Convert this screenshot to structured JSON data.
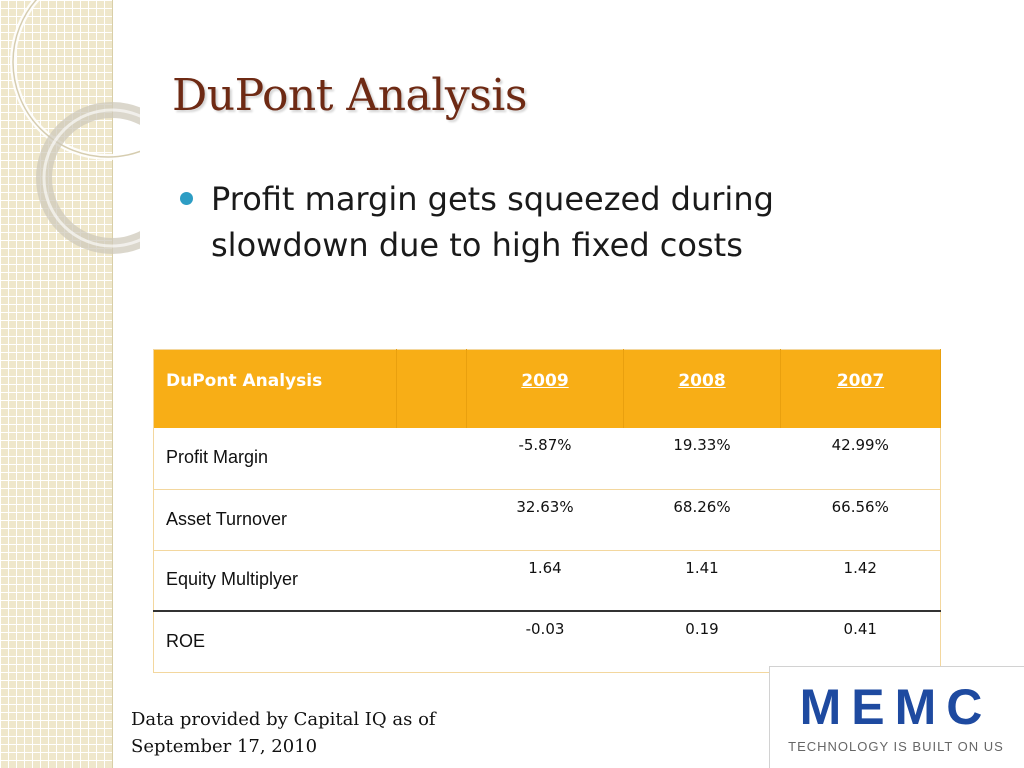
{
  "slide": {
    "title": "DuPont Analysis",
    "bullet": "Profit margin gets squeezed during slowdown due to high fixed costs"
  },
  "table": {
    "header": {
      "label": "DuPont Analysis",
      "years": [
        "2009",
        "2008",
        "2007"
      ]
    },
    "rows": [
      {
        "label": "Profit Margin",
        "values": [
          "-5.87%",
          "19.33%",
          "42.99%"
        ]
      },
      {
        "label": "Asset Turnover",
        "values": [
          "32.63%",
          "68.26%",
          "66.56%"
        ]
      },
      {
        "label": "Equity Multiplyer",
        "values": [
          "1.64",
          "1.41",
          "1.42"
        ]
      },
      {
        "label": "ROE",
        "values": [
          "-0.03",
          "0.19",
          "0.41"
        ]
      }
    ]
  },
  "source_note": {
    "line1": "Data provided by Capital IQ as of",
    "line2": "September 17, 2010"
  },
  "logo": {
    "name": "MEMC",
    "tagline": "TECHNOLOGY IS BUILT ON US"
  },
  "colors": {
    "title": "#6e2a14",
    "header_fill": "#f8ae16",
    "bullet": "#2d9dc4",
    "logo_blue": "#1e4aa0"
  }
}
